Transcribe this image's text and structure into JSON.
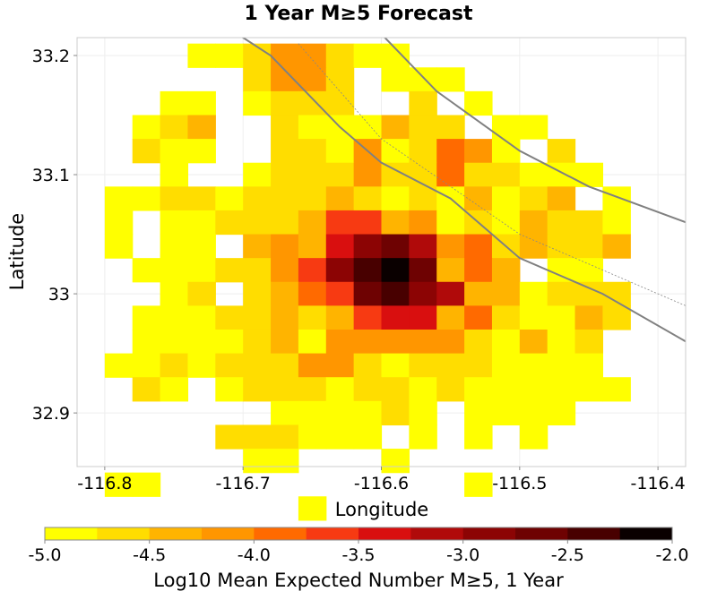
{
  "chart_data": {
    "type": "heatmap",
    "title": "1 Year M≥5 Forecast",
    "xlabel": "Longitude",
    "ylabel": "Latitude",
    "xlim": [
      -116.82,
      -116.38
    ],
    "ylim": [
      32.855,
      33.215
    ],
    "x_ticks": [
      {
        "value": -116.8,
        "label": "-116.8"
      },
      {
        "value": -116.7,
        "label": "-116.7"
      },
      {
        "value": -116.6,
        "label": "-116.6"
      },
      {
        "value": -116.5,
        "label": "-116.5"
      },
      {
        "value": -116.4,
        "label": "-116.4"
      }
    ],
    "y_ticks": [
      {
        "value": 33.2,
        "label": "33.2"
      },
      {
        "value": 33.1,
        "label": "33.1"
      },
      {
        "value": 33.0,
        "label": "33"
      },
      {
        "value": 32.9,
        "label": "32.9"
      }
    ],
    "grid": true,
    "cell_size": 0.02,
    "x_start": -116.79,
    "y_start": 33.2,
    "levels": [
      "...SSTHHTSS........",
      ".....THHT.SSS......",
      "..SS.STTT..T.S.....",
      ".STQ..TSSSQTT.SS...",
      ".TSS..TTSHSTOHS.T..",
      "..S..STTTHTTOTTSSS.",
      "SSTTSTTTQTSTSQSTQ.S",
      "S.SSTTTQWWQHSTSQTTS",
      "S.SS.QHQVXYMHOTQTTQ",
      ".SSSTTHWXabYQOQ.SS.",
      "..ST.TQOWYaXMQQSTTT",
      ".SSSTTQTQWVVQOTSSQT",
      ".SSSSTQSHHHHHTSQST.",
      "SSTSTTTHHTSTTTSSSS.",
      ".TS.STTTSTTSTSSSSSS",
      "......SSSSTS.SSSS..",
      "....TTTSSS.S.S.S...",
      ".....SS...S........",
      "SS...........S.....",
      ".......S..........."
    ],
    "level_values": {
      "S": -4.875,
      "T": -4.625,
      "Q": -4.375,
      "H": -4.125,
      "O": -3.875,
      "W": -3.625,
      "V": -3.375,
      "M": -3.125,
      "X": -2.875,
      "Y": -2.625,
      "a": -2.375,
      "b": -2.125
    },
    "faults": [
      [
        [
          -116.72,
          33.23
        ],
        [
          -116.68,
          33.2
        ],
        [
          -116.63,
          33.14
        ],
        [
          -116.6,
          33.11
        ],
        [
          -116.55,
          33.08
        ],
        [
          -116.5,
          33.03
        ],
        [
          -116.44,
          33.0
        ],
        [
          -116.38,
          32.96
        ]
      ],
      [
        [
          -116.61,
          33.23
        ],
        [
          -116.56,
          33.17
        ],
        [
          -116.5,
          33.12
        ],
        [
          -116.45,
          33.09
        ],
        [
          -116.38,
          33.06
        ]
      ],
      [
        [
          -116.66,
          33.21
        ],
        [
          -116.6,
          33.13
        ],
        [
          -116.55,
          33.09
        ],
        [
          -116.5,
          33.05
        ],
        [
          -116.44,
          33.02
        ],
        [
          -116.38,
          32.99
        ]
      ]
    ],
    "colorbar": {
      "min": -5.0,
      "max": -2.0,
      "step": 0.25,
      "colors": [
        "#ffff00",
        "#ffdd00",
        "#ffb400",
        "#ff9600",
        "#ff6a00",
        "#f73a12",
        "#d90f0f",
        "#b00a0a",
        "#8c0404",
        "#6e0202",
        "#480000",
        "#0a0000"
      ],
      "tick_values": [
        -5.0,
        -4.5,
        -4.0,
        -3.5,
        -3.0,
        -2.5,
        -2.0
      ],
      "tick_labels": [
        "-5.0",
        "-4.5",
        "-4.0",
        "-3.5",
        "-3.0",
        "-2.5",
        "-2.0"
      ],
      "label": "Log10 Mean Expected Number M≥5, 1 Year"
    }
  }
}
